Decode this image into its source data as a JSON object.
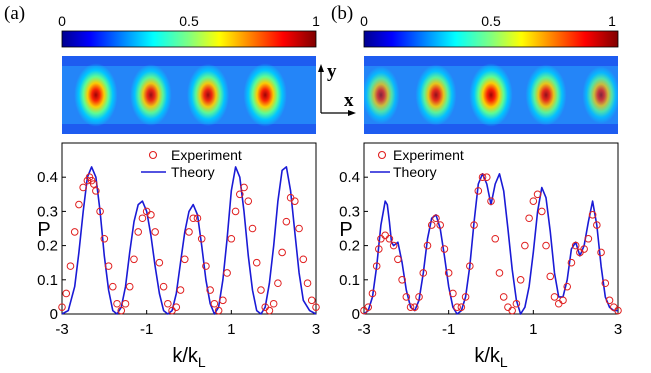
{
  "chart_data": [
    {
      "panel_label": "(a)",
      "type": "heatmap",
      "colorbar": {
        "ticks": [
          "0",
          "0.5",
          "1"
        ],
        "range": [
          0,
          1
        ],
        "colormap": "jet"
      },
      "axis_indicator": {
        "x": "x",
        "y": "y"
      },
      "lobes": [
        {
          "position": -2.2,
          "intensity": 0.95
        },
        {
          "position": -0.9,
          "intensity": 0.8
        },
        {
          "position": 0.45,
          "intensity": 0.85
        },
        {
          "position": 1.8,
          "intensity": 0.95
        }
      ]
    },
    {
      "panel_label": "(b)",
      "type": "heatmap",
      "colorbar": {
        "ticks": [
          "0",
          "0.5",
          "1"
        ],
        "range": [
          0,
          1
        ],
        "colormap": "jet"
      },
      "lobes": [
        {
          "position": -2.6,
          "intensity": 0.45
        },
        {
          "position": -1.3,
          "intensity": 0.75
        },
        {
          "position": 0.0,
          "intensity": 0.95
        },
        {
          "position": 1.3,
          "intensity": 0.75
        },
        {
          "position": 2.6,
          "intensity": 0.45
        }
      ]
    },
    {
      "type": "line+scatter",
      "xlabel_main": "k/k",
      "xlabel_sub": "L",
      "ylabel": "P",
      "xlim": [
        -3,
        3
      ],
      "ylim": [
        0,
        0.5
      ],
      "xticks": [
        "-3",
        "-1",
        "1",
        "3"
      ],
      "xtick_values": [
        -3,
        -1,
        1,
        3
      ],
      "yticks": [
        "0",
        "0.1",
        "0.2",
        "0.3",
        "0.4"
      ],
      "ytick_values": [
        0,
        0.1,
        0.2,
        0.3,
        0.4
      ],
      "legend": {
        "position": "top-center",
        "entries": [
          "Experiment",
          "Theory"
        ]
      },
      "series": [
        {
          "name": "Theory",
          "color": "#1a1ad6",
          "x": [
            -3.0,
            -2.85,
            -2.7,
            -2.6,
            -2.5,
            -2.4,
            -2.3,
            -2.2,
            -2.1,
            -2.0,
            -1.9,
            -1.8,
            -1.7,
            -1.6,
            -1.5,
            -1.4,
            -1.3,
            -1.2,
            -1.1,
            -1.0,
            -0.9,
            -0.8,
            -0.7,
            -0.6,
            -0.5,
            -0.4,
            -0.3,
            -0.2,
            -0.1,
            0.0,
            0.1,
            0.2,
            0.3,
            0.4,
            0.5,
            0.6,
            0.7,
            0.8,
            0.9,
            1.0,
            1.1,
            1.2,
            1.3,
            1.4,
            1.5,
            1.6,
            1.7,
            1.8,
            1.9,
            2.0,
            2.1,
            2.2,
            2.3,
            2.4,
            2.5,
            2.6,
            2.7,
            2.85,
            3.0
          ],
          "y": [
            0.0,
            0.01,
            0.08,
            0.18,
            0.3,
            0.4,
            0.43,
            0.4,
            0.3,
            0.17,
            0.07,
            0.01,
            0.0,
            0.02,
            0.08,
            0.18,
            0.27,
            0.32,
            0.33,
            0.3,
            0.23,
            0.14,
            0.06,
            0.01,
            0.0,
            0.01,
            0.06,
            0.15,
            0.24,
            0.3,
            0.32,
            0.29,
            0.2,
            0.1,
            0.03,
            0.0,
            0.02,
            0.1,
            0.22,
            0.36,
            0.43,
            0.4,
            0.3,
            0.17,
            0.07,
            0.01,
            0.0,
            0.02,
            0.09,
            0.2,
            0.33,
            0.42,
            0.43,
            0.36,
            0.24,
            0.12,
            0.04,
            0.01,
            0.0
          ]
        },
        {
          "name": "Experiment",
          "color": "#e02020",
          "x": [
            -3.0,
            -2.9,
            -2.8,
            -2.7,
            -2.6,
            -2.5,
            -2.4,
            -2.35,
            -2.3,
            -2.25,
            -2.2,
            -2.1,
            -2.0,
            -1.9,
            -1.8,
            -1.7,
            -1.6,
            -1.5,
            -1.4,
            -1.3,
            -1.2,
            -1.1,
            -1.0,
            -0.9,
            -0.8,
            -0.7,
            -0.6,
            -0.5,
            -0.4,
            -0.3,
            -0.2,
            -0.1,
            0.0,
            0.1,
            0.2,
            0.3,
            0.4,
            0.5,
            0.6,
            0.7,
            0.8,
            0.9,
            1.0,
            1.1,
            1.2,
            1.3,
            1.4,
            1.5,
            1.6,
            1.7,
            1.8,
            1.9,
            2.0,
            2.1,
            2.2,
            2.3,
            2.4,
            2.5,
            2.6,
            2.7,
            2.8,
            2.9,
            3.0
          ],
          "y": [
            0.02,
            0.06,
            0.14,
            0.24,
            0.32,
            0.37,
            0.39,
            0.4,
            0.39,
            0.38,
            0.36,
            0.3,
            0.22,
            0.14,
            0.08,
            0.03,
            0.01,
            0.03,
            0.08,
            0.16,
            0.24,
            0.28,
            0.3,
            0.29,
            0.24,
            0.15,
            0.08,
            0.03,
            0.01,
            0.02,
            0.07,
            0.16,
            0.24,
            0.28,
            0.28,
            0.22,
            0.14,
            0.07,
            0.03,
            0.01,
            0.04,
            0.12,
            0.22,
            0.3,
            0.35,
            0.37,
            0.33,
            0.25,
            0.15,
            0.07,
            0.02,
            0.01,
            0.03,
            0.09,
            0.18,
            0.27,
            0.34,
            0.33,
            0.25,
            0.16,
            0.09,
            0.04,
            0.02
          ]
        }
      ]
    },
    {
      "type": "line+scatter",
      "xlabel_main": "k/k",
      "xlabel_sub": "L",
      "ylabel": "P",
      "xlim": [
        -3,
        3
      ],
      "ylim": [
        0,
        0.5
      ],
      "xticks": [
        "-3",
        "-1",
        "1",
        "3"
      ],
      "xtick_values": [
        -3,
        -1,
        1,
        3
      ],
      "yticks": [
        "0",
        "0.1",
        "0.2",
        "0.3",
        "0.4"
      ],
      "ytick_values": [
        0,
        0.1,
        0.2,
        0.3,
        0.4
      ],
      "legend": {
        "position": "top-left",
        "entries": [
          "Experiment",
          "Theory"
        ]
      },
      "series": [
        {
          "name": "Theory",
          "color": "#1a1ad6",
          "x": [
            -3.0,
            -2.9,
            -2.8,
            -2.7,
            -2.6,
            -2.5,
            -2.45,
            -2.4,
            -2.35,
            -2.3,
            -2.2,
            -2.1,
            -2.0,
            -1.9,
            -1.8,
            -1.7,
            -1.6,
            -1.5,
            -1.4,
            -1.3,
            -1.2,
            -1.1,
            -1.0,
            -0.9,
            -0.8,
            -0.7,
            -0.6,
            -0.5,
            -0.4,
            -0.3,
            -0.2,
            -0.1,
            0.0,
            0.1,
            0.2,
            0.3,
            0.4,
            0.5,
            0.6,
            0.7,
            0.8,
            0.9,
            1.0,
            1.1,
            1.2,
            1.3,
            1.4,
            1.5,
            1.6,
            1.7,
            1.8,
            1.9,
            2.0,
            2.1,
            2.2,
            2.3,
            2.4,
            2.5,
            2.6,
            2.7,
            2.8,
            2.9,
            3.0
          ],
          "y": [
            0.0,
            0.01,
            0.05,
            0.14,
            0.26,
            0.33,
            0.32,
            0.27,
            0.21,
            0.2,
            0.21,
            0.15,
            0.07,
            0.02,
            0.01,
            0.04,
            0.12,
            0.22,
            0.28,
            0.29,
            0.25,
            0.17,
            0.08,
            0.02,
            0.0,
            0.01,
            0.05,
            0.14,
            0.27,
            0.38,
            0.41,
            0.38,
            0.32,
            0.38,
            0.41,
            0.36,
            0.25,
            0.13,
            0.04,
            0.0,
            0.02,
            0.08,
            0.18,
            0.3,
            0.37,
            0.34,
            0.24,
            0.12,
            0.05,
            0.05,
            0.1,
            0.19,
            0.21,
            0.17,
            0.2,
            0.27,
            0.33,
            0.26,
            0.14,
            0.05,
            0.02,
            0.01,
            0.01
          ]
        },
        {
          "name": "Experiment",
          "color": "#e02020",
          "x": [
            -3.0,
            -2.9,
            -2.8,
            -2.7,
            -2.65,
            -2.6,
            -2.5,
            -2.4,
            -2.3,
            -2.2,
            -2.1,
            -2.0,
            -1.9,
            -1.8,
            -1.7,
            -1.6,
            -1.5,
            -1.4,
            -1.3,
            -1.2,
            -1.1,
            -1.0,
            -0.9,
            -0.8,
            -0.7,
            -0.6,
            -0.5,
            -0.4,
            -0.3,
            -0.2,
            -0.1,
            0.0,
            0.1,
            0.2,
            0.3,
            0.4,
            0.5,
            0.6,
            0.7,
            0.8,
            0.9,
            1.0,
            1.1,
            1.2,
            1.3,
            1.4,
            1.5,
            1.6,
            1.7,
            1.8,
            1.9,
            2.0,
            2.1,
            2.2,
            2.3,
            2.4,
            2.5,
            2.6,
            2.7,
            2.8,
            2.9,
            3.0
          ],
          "y": [
            0.01,
            0.02,
            0.06,
            0.14,
            0.19,
            0.22,
            0.23,
            0.22,
            0.2,
            0.16,
            0.1,
            0.05,
            0.02,
            0.02,
            0.05,
            0.12,
            0.2,
            0.26,
            0.28,
            0.26,
            0.19,
            0.12,
            0.06,
            0.02,
            0.02,
            0.05,
            0.14,
            0.26,
            0.36,
            0.4,
            0.4,
            0.33,
            0.22,
            0.12,
            0.05,
            0.02,
            0.01,
            0.03,
            0.1,
            0.2,
            0.28,
            0.33,
            0.35,
            0.3,
            0.2,
            0.11,
            0.05,
            0.03,
            0.04,
            0.08,
            0.15,
            0.2,
            0.18,
            0.19,
            0.22,
            0.29,
            0.26,
            0.18,
            0.09,
            0.04,
            0.02,
            0.01
          ]
        }
      ]
    }
  ]
}
